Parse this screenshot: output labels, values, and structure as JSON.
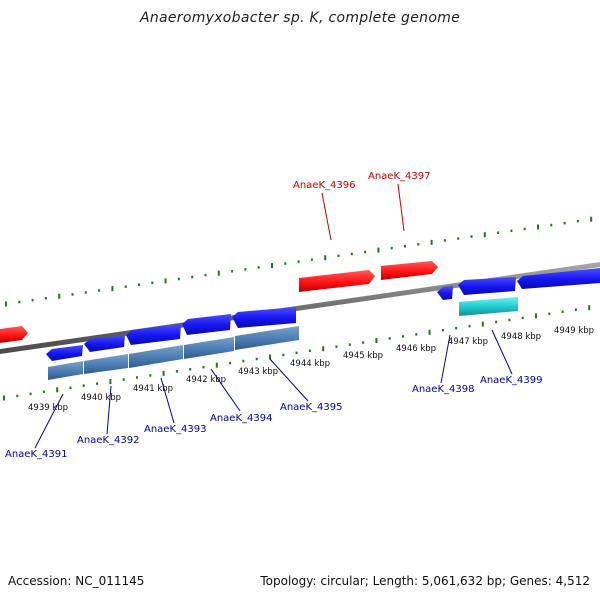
{
  "title": "Anaeromyxobacter sp. K, complete genome",
  "footer": {
    "accession": "Accession: NC_011145",
    "summary": "Topology: circular; Length: 5,061,632 bp; Genes: 4,512"
  },
  "colors": {
    "forward_gene": "#ff1a1a",
    "reverse_gene": "#1a1aff",
    "cds_bar": "#4f7fb4",
    "cyan_feature": "#29d3d6",
    "tick": "#1d7a1d",
    "backbone": "#7a7a7a",
    "forward_label": "#cc0000",
    "reverse_label": "#0000b0"
  },
  "scale": {
    "unit": "kbp",
    "ticks": [
      {
        "label": "4939 kbp",
        "value": 4939
      },
      {
        "label": "4940 kbp",
        "value": 4940
      },
      {
        "label": "4941 kbp",
        "value": 4941
      },
      {
        "label": "4942 kbp",
        "value": 4942
      },
      {
        "label": "4943 kbp",
        "value": 4943
      },
      {
        "label": "4944 kbp",
        "value": 4944
      },
      {
        "label": "4945 kbp",
        "value": 4945
      },
      {
        "label": "4946 kbp",
        "value": 4946
      },
      {
        "label": "4947 kbp",
        "value": 4947
      },
      {
        "label": "4948 kbp",
        "value": 4948
      },
      {
        "label": "4949 kbp",
        "value": 4949
      }
    ]
  },
  "forward_labels": [
    {
      "name": "AnaeK_4396"
    },
    {
      "name": "AnaeK_4397"
    }
  ],
  "reverse_labels": [
    {
      "name": "AnaeK_4391"
    },
    {
      "name": "AnaeK_4392"
    },
    {
      "name": "AnaeK_4393"
    },
    {
      "name": "AnaeK_4394"
    },
    {
      "name": "AnaeK_4395"
    },
    {
      "name": "AnaeK_4398"
    },
    {
      "name": "AnaeK_4399"
    }
  ]
}
